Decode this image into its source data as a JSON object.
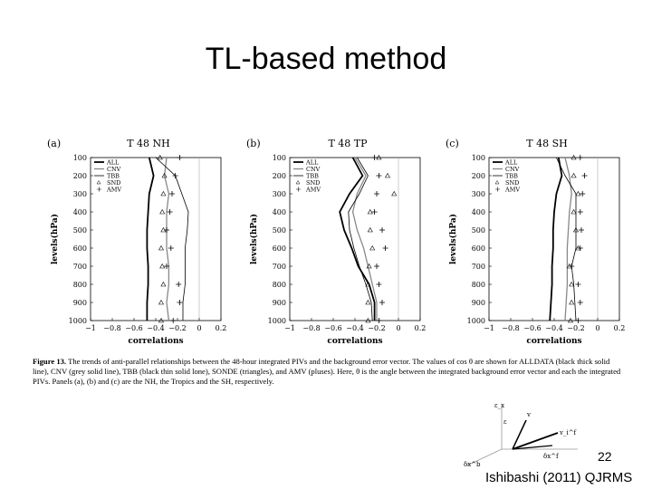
{
  "slide": {
    "title": "TL-based method",
    "page_number": "22",
    "citation": "Ishibashi (2011) QJRMS"
  },
  "caption": {
    "figure_label": "Figure 13.",
    "text": "The trends of anti-parallel relationships between the 48-hour integrated PIVs and the background error vector. The values of cos θ are shown for ALLDATA (black thick solid line), CNV (grey solid line), TBB (black thin solid lone), SONDE (triangles), and AMV (pluses). Here, θ is the angle between the integrated background error vector and each the integrated PIVs. Panels (a), (b) and (c) are the NH, the Tropics and the SH, respectively."
  },
  "diagram": {
    "labels": [
      "ε",
      "δx^b",
      "v",
      "v_i^f",
      "δx^f",
      "ε_x"
    ]
  },
  "chart_data": [
    {
      "type": "line",
      "panel_label": "(a)",
      "title": "T 48 NH",
      "xlabel": "correlations",
      "ylabel": "levels(hPa)",
      "xlim": [
        -1,
        0.2
      ],
      "ylim": [
        1000,
        100
      ],
      "xticks": [
        "−1",
        "−0.8",
        "−0.6",
        "−0.4",
        "−0.2",
        "0",
        "0.2"
      ],
      "yticks": [
        "100",
        "200",
        "300",
        "400",
        "500",
        "600",
        "700",
        "800",
        "900",
        "1000"
      ],
      "legend": [
        "ALL",
        "CNV",
        "TBB",
        "SND",
        "AMV"
      ],
      "legend_position": "top-left",
      "y": [
        100,
        200,
        300,
        400,
        500,
        600,
        700,
        800,
        900,
        1000
      ],
      "series": [
        {
          "name": "ALL",
          "style": "thick-black",
          "values": [
            -0.46,
            -0.42,
            -0.46,
            -0.47,
            -0.48,
            -0.48,
            -0.47,
            -0.47,
            -0.48,
            -0.48
          ]
        },
        {
          "name": "CNV",
          "style": "grey",
          "values": [
            -0.3,
            -0.32,
            -0.28,
            -0.3,
            -0.3,
            -0.3,
            -0.28,
            -0.28,
            -0.3,
            -0.28
          ]
        },
        {
          "name": "TBB",
          "style": "thin-black",
          "values": [
            -0.4,
            -0.22,
            -0.16,
            -0.1,
            -0.11,
            -0.13,
            -0.13,
            -0.13,
            -0.15,
            -0.15
          ]
        },
        {
          "name": "SND",
          "style": "triangles",
          "values": [
            -0.36,
            -0.32,
            -0.33,
            -0.34,
            -0.33,
            -0.35,
            -0.34,
            -0.33,
            -0.35,
            -0.35
          ]
        },
        {
          "name": "AMV",
          "style": "pluses",
          "values": [
            -0.18,
            -0.22,
            -0.25,
            -0.27,
            -0.3,
            -0.26,
            -0.3,
            -0.19,
            -0.18,
            -0.24
          ]
        }
      ]
    },
    {
      "type": "line",
      "panel_label": "(b)",
      "title": "T 48 TP",
      "xlabel": "correlations",
      "ylabel": "levels(hPa)",
      "xlim": [
        -1,
        0.2
      ],
      "ylim": [
        1000,
        100
      ],
      "xticks": [
        "−1",
        "−0.8",
        "−0.6",
        "−0.4",
        "−0.2",
        "0",
        "0.2"
      ],
      "yticks": [
        "100",
        "200",
        "300",
        "400",
        "500",
        "600",
        "700",
        "800",
        "900",
        "1000"
      ],
      "legend": [
        "ALL",
        "CNV",
        "TBB",
        "SND",
        "AMV"
      ],
      "legend_position": "top-left",
      "y": [
        100,
        200,
        300,
        400,
        500,
        600,
        700,
        800,
        900,
        1000
      ],
      "series": [
        {
          "name": "ALL",
          "style": "thick-black",
          "values": [
            -0.42,
            -0.33,
            -0.45,
            -0.54,
            -0.5,
            -0.43,
            -0.37,
            -0.27,
            -0.22,
            -0.22
          ]
        },
        {
          "name": "CNV",
          "style": "grey",
          "values": [
            -0.4,
            -0.3,
            -0.38,
            -0.42,
            -0.38,
            -0.32,
            -0.28,
            -0.24,
            -0.2,
            -0.2
          ]
        },
        {
          "name": "TBB",
          "style": "thin-black",
          "values": [
            -0.38,
            -0.28,
            -0.36,
            -0.46,
            -0.45,
            -0.41,
            -0.36,
            -0.3,
            -0.25,
            -0.24
          ]
        },
        {
          "name": "SND",
          "style": "triangles",
          "values": [
            -0.18,
            -0.1,
            -0.04,
            -0.26,
            -0.26,
            -0.24,
            -0.27,
            -0.28,
            -0.28,
            -0.28
          ]
        },
        {
          "name": "AMV",
          "style": "pluses",
          "values": [
            -0.22,
            -0.18,
            -0.2,
            -0.22,
            -0.15,
            -0.12,
            -0.2,
            -0.18,
            -0.15,
            -0.18
          ]
        }
      ]
    },
    {
      "type": "line",
      "panel_label": "(c)",
      "title": "T 48 SH",
      "xlabel": "correlations",
      "ylabel": "levels(hPa)",
      "xlim": [
        -1,
        0.2
      ],
      "ylim": [
        1000,
        100
      ],
      "xticks": [
        "−1",
        "−0.8",
        "−0.6",
        "−0.4",
        "−0.2",
        "0",
        "0.2"
      ],
      "yticks": [
        "100",
        "200",
        "300",
        "400",
        "500",
        "600",
        "700",
        "800",
        "900",
        "1000"
      ],
      "legend": [
        "ALL",
        "CNV",
        "TBB",
        "SND",
        "AMV"
      ],
      "legend_position": "top-left",
      "y": [
        100,
        200,
        300,
        400,
        500,
        600,
        700,
        800,
        900,
        1000
      ],
      "series": [
        {
          "name": "ALL",
          "style": "thick-black",
          "values": [
            -0.36,
            -0.33,
            -0.38,
            -0.4,
            -0.41,
            -0.41,
            -0.42,
            -0.42,
            -0.43,
            -0.44
          ]
        },
        {
          "name": "CNV",
          "style": "grey",
          "values": [
            -0.3,
            -0.26,
            -0.24,
            -0.26,
            -0.27,
            -0.28,
            -0.28,
            -0.28,
            -0.29,
            -0.3
          ]
        },
        {
          "name": "TBB",
          "style": "thin-black",
          "values": [
            -0.38,
            -0.3,
            -0.2,
            -0.2,
            -0.2,
            -0.2,
            -0.24,
            -0.22,
            -0.21,
            -0.2
          ]
        },
        {
          "name": "SND",
          "style": "triangles",
          "values": [
            -0.22,
            -0.22,
            -0.18,
            -0.22,
            -0.2,
            -0.18,
            -0.26,
            -0.24,
            -0.24,
            -0.25
          ]
        },
        {
          "name": "AMV",
          "style": "pluses",
          "values": [
            -0.16,
            -0.12,
            -0.14,
            -0.16,
            -0.15,
            -0.16,
            -0.24,
            -0.18,
            -0.16,
            -0.18
          ]
        }
      ]
    }
  ]
}
